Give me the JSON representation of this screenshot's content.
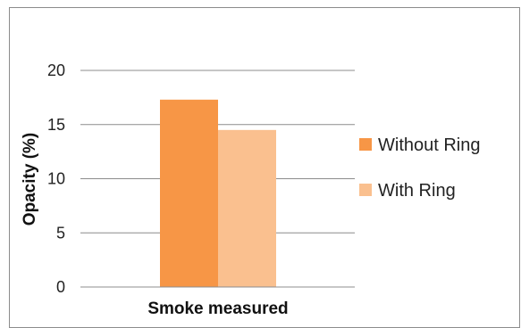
{
  "chart_data": {
    "type": "bar",
    "categories": [
      "Smoke measured"
    ],
    "series": [
      {
        "name": "Without Ring",
        "values": [
          17.3
        ],
        "color": "#f79646"
      },
      {
        "name": "With Ring",
        "values": [
          14.5
        ],
        "color": "#fac08f"
      }
    ],
    "xlabel": "Smoke measured",
    "ylabel": "Opacity (%)",
    "ylim": [
      0,
      20
    ],
    "yticks": [
      "0",
      "5",
      "10",
      "15",
      "20"
    ],
    "grid": true,
    "legend": "right",
    "colors": {
      "gridline": "#8c8c8c",
      "axis": "#8c8c8c"
    }
  }
}
